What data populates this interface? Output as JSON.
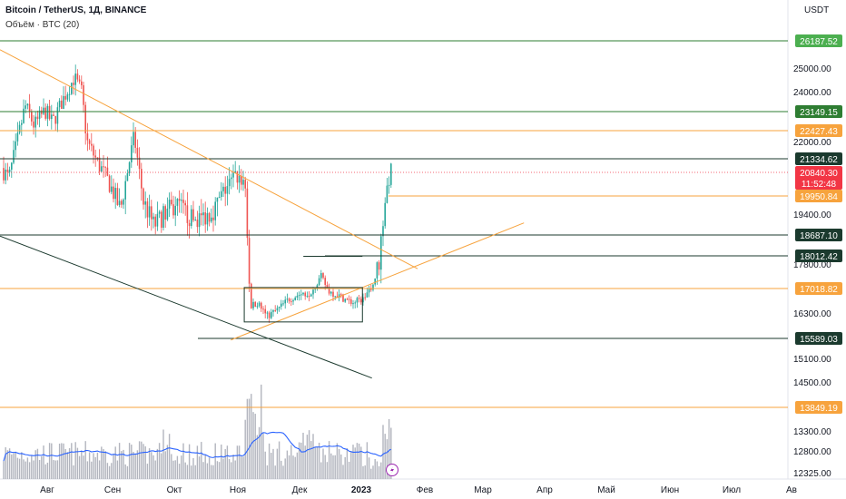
{
  "header": {
    "symbol_line": "Bitcoin / TetherUS, 1Д, BINANCE",
    "indicator_line": "Объём · BTC (20)",
    "currency": "USDT"
  },
  "colors": {
    "up": "#26a69a",
    "down": "#ef5350",
    "ma": "#2962ff",
    "volume": "#b2b5be",
    "orange": "#f7a33d",
    "green_line": "#2e7d32",
    "dark_line": "#1b3a2e",
    "red_badge": "#f23645"
  },
  "chart_data": {
    "type": "candlestick",
    "yaxis": {
      "ticks": [
        {
          "v": 25000,
          "label": "25000.00"
        },
        {
          "v": 24000,
          "label": "24000.00"
        },
        {
          "v": 22000,
          "label": "22000.00"
        },
        {
          "v": 19400,
          "label": "19400.00"
        },
        {
          "v": 17800,
          "label": "17800.00"
        },
        {
          "v": 16300,
          "label": "16300.00"
        },
        {
          "v": 15100,
          "label": "15100.00"
        },
        {
          "v": 14500,
          "label": "14500.00"
        },
        {
          "v": 13300,
          "label": "13300.00"
        },
        {
          "v": 12800,
          "label": "12800.00"
        },
        {
          "v": 12325,
          "label": "12325.00"
        }
      ]
    },
    "xaxis": {
      "ticks": [
        {
          "label": "Авг",
          "bold": false
        },
        {
          "label": "Сен",
          "bold": false
        },
        {
          "label": "Окт",
          "bold": false
        },
        {
          "label": "Ноя",
          "bold": false
        },
        {
          "label": "Дек",
          "bold": false
        },
        {
          "label": "2023",
          "bold": true
        },
        {
          "label": "Фев",
          "bold": false
        },
        {
          "label": "Мар",
          "bold": false
        },
        {
          "label": "Апр",
          "bold": false
        },
        {
          "label": "Май",
          "bold": false
        },
        {
          "label": "Июн",
          "bold": false
        },
        {
          "label": "Июл",
          "bold": false
        },
        {
          "label": "Ав",
          "bold": false
        }
      ]
    },
    "levels": [
      {
        "v": 26187.52,
        "label": "26187.52",
        "color": "green"
      },
      {
        "v": 23149.15,
        "label": "23149.15",
        "color": "green"
      },
      {
        "v": 22427.43,
        "label": "22427.43",
        "color": "orange"
      },
      {
        "v": 21334.62,
        "label": "21334.62",
        "color": "dark"
      },
      {
        "v": 19950.84,
        "label": "19950.84",
        "color": "orange"
      },
      {
        "v": 18687.1,
        "label": "18687.10",
        "color": "dark"
      },
      {
        "v": 18012.42,
        "label": "18012.42",
        "color": "dark"
      },
      {
        "v": 17018.82,
        "label": "17018.82",
        "color": "orange"
      },
      {
        "v": 15589.03,
        "label": "15589.03",
        "color": "dark"
      },
      {
        "v": 13849.19,
        "label": "13849.19",
        "color": "orange"
      }
    ],
    "price": {
      "v": 20840.3,
      "label": "20840.30",
      "countdown": "11:52:48"
    },
    "trendlines": [
      {
        "from": [
          0,
          25800
        ],
        "to": [
          0.53,
          17650
        ],
        "color": "orange"
      },
      {
        "from": [
          0.293,
          15550
        ],
        "to": [
          0.665,
          19100
        ],
        "color": "orange"
      },
      {
        "from": [
          0,
          18650
        ],
        "to": [
          0.472,
          14600
        ],
        "color": "dark"
      }
    ],
    "box": {
      "from": [
        0.31,
        17050
      ],
      "to": [
        0.46,
        16050
      ],
      "color": "dark"
    },
    "box2": {
      "from": [
        0.385,
        18000
      ],
      "to": [
        0.46,
        18000
      ],
      "color": "dark"
    }
  }
}
